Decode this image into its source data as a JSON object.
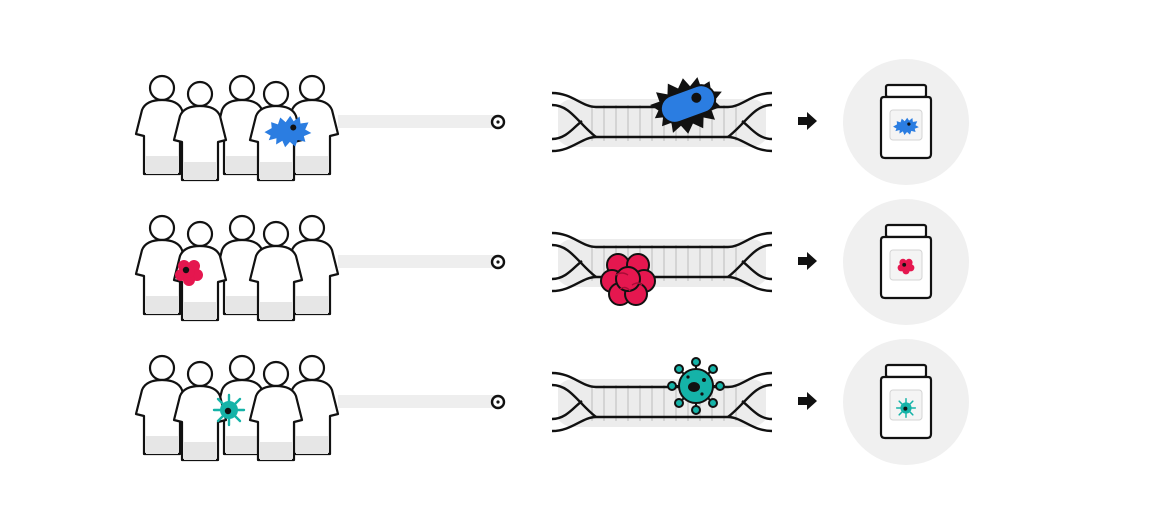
{
  "diagram": {
    "description_free": true,
    "rows": [
      {
        "pathogen": "bacterium-icon",
        "color": "#2b7de1",
        "people_count": 5,
        "infected_person": 4
      },
      {
        "pathogen": "tumor-cell-icon",
        "color": "#e5174f",
        "people_count": 5,
        "infected_person": 2
      },
      {
        "pathogen": "virus-icon",
        "color": "#15b3a8",
        "people_count": 5,
        "infected_person": 3
      }
    ],
    "colors": {
      "outline": "#111111",
      "body_fill": "#ffffff",
      "shadow": "#e6e6e6",
      "connector": "#eeeeee",
      "circle_bg": "#f0f0f0"
    }
  }
}
